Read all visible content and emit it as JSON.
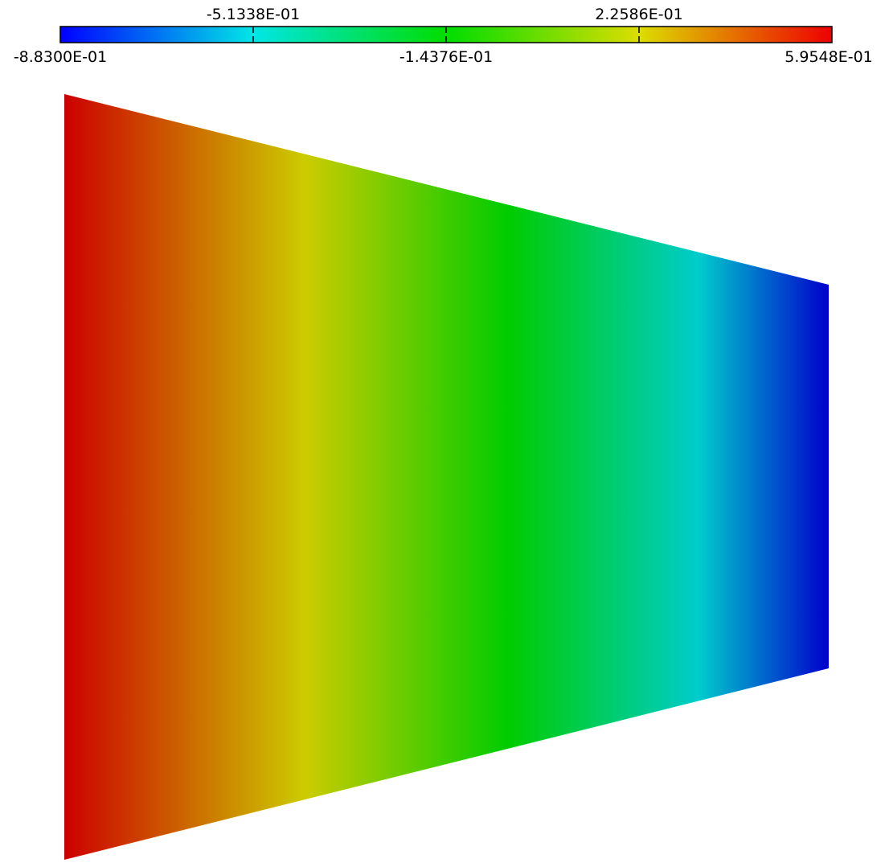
{
  "colorbar": {
    "labels_top": [
      "-5.1338E-01",
      "2.2586E-01"
    ],
    "labels_bottom": [
      "-8.8300E-01",
      "-1.4376E-01",
      "5.9548E-01"
    ],
    "min": -0.883,
    "max": 0.59548,
    "colormap": [
      "#0000ff",
      "#00e6e6",
      "#00dd00",
      "#dddd00",
      "#ee0000"
    ]
  },
  "field": {
    "shape": "trapezoid",
    "left_value": 0.59548,
    "right_value": -0.883,
    "colors": {
      "left_edge": "#cc0000",
      "yellow_band": "#cccc00",
      "green_band": "#00cc00",
      "cyan_band": "#00cccc",
      "right_edge": "#0000cc"
    }
  }
}
